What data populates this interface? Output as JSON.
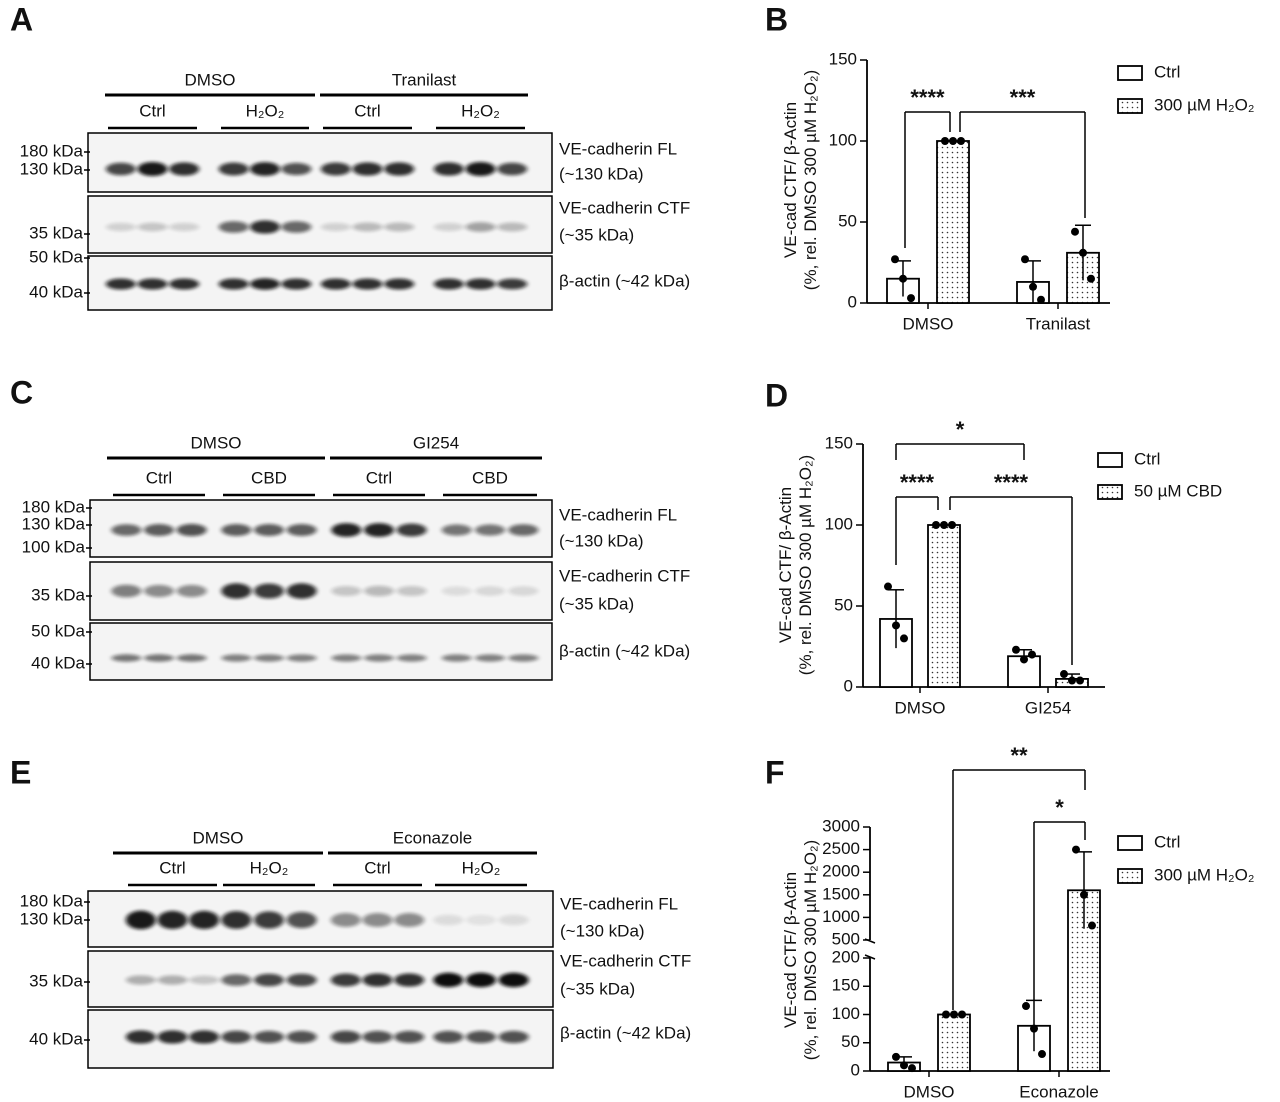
{
  "blots": [
    {
      "label": "A",
      "groups": [
        "DMSO",
        "Tranilast"
      ],
      "subgroups": [
        "Ctrl",
        "H₂O₂",
        "Ctrl",
        "H₂O₂"
      ],
      "strips": [
        {
          "markers": [
            "180 kDa",
            "130 kDa"
          ],
          "names": [
            "VE-cadherin FL",
            "(~130 kDa)"
          ]
        },
        {
          "markers": [
            "35 kDa"
          ],
          "names": [
            "VE-cadherin CTF",
            "(~35 kDa)"
          ]
        },
        {
          "markers": [
            "50 kDa",
            "40 kDa"
          ],
          "names": [
            "β-actin (~42 kDa)"
          ]
        }
      ]
    },
    {
      "label": "C",
      "groups": [
        "DMSO",
        "GI254"
      ],
      "subgroups": [
        "Ctrl",
        "CBD",
        "Ctrl",
        "CBD"
      ],
      "strips": [
        {
          "markers": [
            "180 kDa",
            "130 kDa",
            "100 kDa"
          ],
          "names": [
            "VE-cadherin FL",
            "(~130 kDa)"
          ]
        },
        {
          "markers": [
            "35 kDa"
          ],
          "names": [
            "VE-cadherin CTF",
            "(~35 kDa)"
          ]
        },
        {
          "markers": [
            "50 kDa",
            "40 kDa"
          ],
          "names": [
            "β-actin (~42 kDa)"
          ]
        }
      ]
    },
    {
      "label": "E",
      "groups": [
        "DMSO",
        "Econazole"
      ],
      "subgroups": [
        "Ctrl",
        "H₂O₂",
        "Ctrl",
        "H₂O₂"
      ],
      "strips": [
        {
          "markers": [
            "180 kDa",
            "130 kDa"
          ],
          "names": [
            "VE-cadherin FL",
            "(~130 kDa)"
          ]
        },
        {
          "markers": [
            "35 kDa"
          ],
          "names": [
            "VE-cadherin CTF",
            "(~35 kDa)"
          ]
        },
        {
          "markers": [
            "40 kDa"
          ],
          "names": [
            "β-actin (~42 kDa)"
          ]
        }
      ]
    }
  ],
  "chart_data": [
    {
      "type": "bar",
      "label": "B",
      "ylabel": [
        "VE-cad CTF/ β-Actin",
        "(%, rel. DMSO 300 µM H₂O₂)"
      ],
      "categories": [
        "DMSO",
        "Tranilast"
      ],
      "series": [
        {
          "name": "Ctrl",
          "color": "#ffffff",
          "pattern": "none",
          "values": [
            15,
            13
          ],
          "errors": [
            11,
            13
          ],
          "points": [
            [
              27,
              15,
              3
            ],
            [
              27,
              10,
              2
            ]
          ]
        },
        {
          "name": "300 µM H₂O₂",
          "color": "#ffffff",
          "pattern": "dots",
          "values": [
            100,
            31
          ],
          "errors": [
            0,
            17
          ],
          "points": [
            [
              100,
              100,
              100
            ],
            [
              44,
              31,
              15
            ]
          ]
        }
      ],
      "ylim": [
        0,
        150
      ],
      "yticks": [
        0,
        50,
        100,
        150
      ],
      "annotations": [
        "****",
        "***"
      ]
    },
    {
      "type": "bar",
      "label": "D",
      "ylabel": [
        "VE-cad CTF/ β-Actin",
        "(%, rel. DMSO 300 µM H₂O₂)"
      ],
      "categories": [
        "DMSO",
        "GI254"
      ],
      "series": [
        {
          "name": "Ctrl",
          "color": "#ffffff",
          "pattern": "none",
          "values": [
            42,
            19
          ],
          "errors": [
            18,
            4
          ],
          "points": [
            [
              62,
              38,
              30
            ],
            [
              23,
              17,
              20
            ]
          ]
        },
        {
          "name": "50 µM CBD",
          "color": "#ffffff",
          "pattern": "dots",
          "values": [
            100,
            5
          ],
          "errors": [
            0,
            3
          ],
          "points": [
            [
              100,
              100,
              100
            ],
            [
              8,
              4,
              4
            ]
          ]
        }
      ],
      "ylim": [
        0,
        150
      ],
      "yticks": [
        0,
        50,
        100,
        150
      ],
      "annotations": [
        "*",
        "****",
        "****"
      ]
    },
    {
      "type": "bar",
      "label": "F",
      "ylabel": [
        "VE-cad CTF/ β-Actin",
        "(%, rel. DMSO 300 µM H₂O₂)"
      ],
      "categories": [
        "DMSO",
        "Econazole"
      ],
      "series": [
        {
          "name": "Ctrl",
          "color": "#ffffff",
          "pattern": "none",
          "values": [
            15,
            80
          ],
          "errors": [
            10,
            45
          ],
          "points": [
            [
              25,
              10,
              5
            ],
            [
              115,
              75,
              30
            ]
          ]
        },
        {
          "name": "300 µM H₂O₂",
          "color": "#ffffff",
          "pattern": "dots",
          "values": [
            100,
            1600
          ],
          "errors": [
            0,
            850
          ],
          "points": [
            [
              100,
              100,
              100
            ],
            [
              2500,
              1500,
              820
            ]
          ]
        }
      ],
      "ylim": [
        0,
        3000
      ],
      "ybreak": [
        200,
        500
      ],
      "yticks": [
        0,
        50,
        100,
        150,
        200,
        500,
        1000,
        1500,
        2000,
        2500,
        3000
      ],
      "annotations": [
        "**",
        "*"
      ]
    }
  ]
}
